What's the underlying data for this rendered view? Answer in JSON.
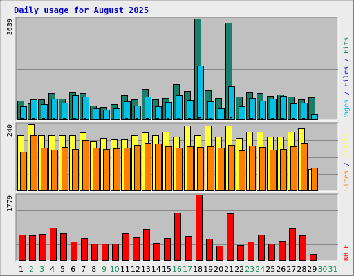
{
  "chart_data": {
    "type": "bar",
    "title": "Daily usage for August 2025",
    "colors": {
      "background": "#ececec",
      "plot": "#c0c0c0",
      "title": "#0000cc",
      "pages": "#1a7f6a",
      "files": "#00c0e6",
      "hits": "#1a7f6a",
      "visits": "#ffff33",
      "sites": "#ff8000",
      "kbf": "#ff0000",
      "weekday": "#000000",
      "weekend": "#1a8f5a"
    },
    "categories": [
      "1",
      "2",
      "3",
      "4",
      "5",
      "6",
      "7",
      "8",
      "9",
      "10",
      "11",
      "12",
      "13",
      "14",
      "15",
      "16",
      "17",
      "18",
      "19",
      "20",
      "21",
      "22",
      "23",
      "24",
      "25",
      "26",
      "27",
      "28",
      "29",
      "30",
      "31"
    ],
    "weekend_days": [
      "2",
      "3",
      "9",
      "10",
      "16",
      "17",
      "23",
      "24",
      "30",
      "31"
    ],
    "panels": [
      {
        "id": "hits",
        "ymax_label": "3639",
        "ymax": 3639,
        "legend": [
          {
            "text": "Pages",
            "color_key": "files"
          },
          {
            "text": " / ",
            "color_key": "title"
          },
          {
            "text": "Files",
            "color_key": "title"
          },
          {
            "text": " / ",
            "color_key": "title"
          },
          {
            "text": "Hits",
            "color_key": "hits"
          }
        ],
        "series": [
          {
            "color_key": "hits",
            "values": [
              700,
              600,
              750,
              970,
              760,
              990,
              970,
              530,
              460,
              560,
              900,
              740,
              1110,
              750,
              790,
              1290,
              1040,
              3630,
              1070,
              800,
              3480,
              840,
              1000,
              960,
              860,
              920,
              840,
              740,
              820,
              null,
              null
            ]
          },
          {
            "color_key": "files",
            "values": [
              500,
              740,
              570,
              760,
              630,
              890,
              850,
              420,
              380,
              410,
              660,
              520,
              830,
              500,
              640,
              890,
              730,
              1960,
              660,
              430,
              1220,
              500,
              780,
              690,
              770,
              860,
              590,
              630,
              230,
              null,
              null
            ]
          },
          {
            "color_key": "pages",
            "values": [
              70,
              70,
              70,
              70,
              70,
              70,
              70,
              60,
              60,
              60,
              70,
              70,
              70,
              70,
              70,
              80,
              70,
              90,
              70,
              60,
              90,
              60,
              70,
              70,
              70,
              70,
              70,
              70,
              60,
              null,
              null
            ]
          }
        ]
      },
      {
        "id": "visits",
        "ymax_label": "240",
        "ymax": 240,
        "legend": [
          {
            "text": "Sites",
            "color_key": "sites"
          },
          {
            "text": " / ",
            "color_key": "title"
          },
          {
            "text": "Visits",
            "color_key": "visits"
          }
        ],
        "series": [
          {
            "color_key": "visits",
            "values": [
              201,
              239,
              200,
              200,
              200,
              200,
              211,
              178,
              190,
              185,
              185,
              200,
              211,
              200,
              212,
              195,
              236,
              200,
              236,
              195,
              236,
              190,
              212,
              212,
              195,
              195,
              212,
              225,
              80,
              null,
              null
            ]
          },
          {
            "color_key": "sites",
            "values": [
              141,
              201,
              155,
              149,
              159,
              151,
              184,
              156,
              152,
              153,
              157,
              165,
              173,
              170,
              161,
              155,
              162,
              158,
              161,
              155,
              165,
              145,
              164,
              158,
              149,
              150,
              160,
              174,
              84,
              null,
              null
            ]
          }
        ]
      },
      {
        "id": "kbf",
        "ymax_label": "1779",
        "ymax": 1779,
        "legend": [
          {
            "text": "KB F",
            "color_key": "kbf"
          }
        ],
        "series": [
          {
            "color_key": "kbf",
            "values": [
              710,
              690,
              730,
              890,
              740,
              530,
              620,
              470,
              460,
              460,
              750,
              640,
              860,
              480,
              610,
              1320,
              670,
              1790,
              590,
              410,
              1290,
              430,
              520,
              710,
              460,
              550,
              880,
              700,
              190,
              null,
              null
            ]
          }
        ]
      }
    ]
  }
}
